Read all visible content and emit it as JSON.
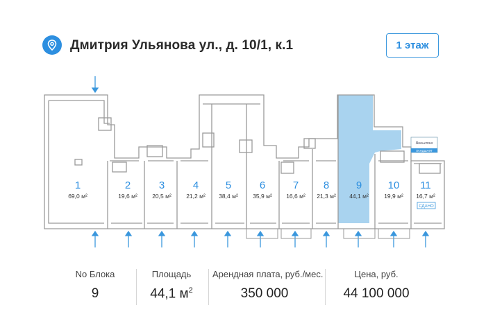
{
  "header": {
    "address": "Дмитрия Ульянова ул., д. 10/1, к.1",
    "floor_button": "1 этаж",
    "pin_icon": "map-pin-icon",
    "accent_color": "#2d8fe0"
  },
  "plan": {
    "selected_unit": "9",
    "highlight_color": "#a9d3ef",
    "units": [
      {
        "num": "1",
        "area": "69,0 м²"
      },
      {
        "num": "2",
        "area": "19,6 м²"
      },
      {
        "num": "3",
        "area": "20,5 м²"
      },
      {
        "num": "4",
        "area": "21,2 м²"
      },
      {
        "num": "5",
        "area": "38,4 м²"
      },
      {
        "num": "6",
        "area": "35,9 м²"
      },
      {
        "num": "7",
        "area": "16,6 м²"
      },
      {
        "num": "8",
        "area": "21,3 м²"
      },
      {
        "num": "9",
        "area": "44,1 м²"
      },
      {
        "num": "10",
        "area": "19,9 м²"
      },
      {
        "num": "11",
        "area": "16,7 м²"
      }
    ],
    "badge_rented": "СДАНО",
    "badge_pharmacy": "ЛАНДШАФТ"
  },
  "info": {
    "block_label": "No Блока",
    "block_value": "9",
    "area_label": "Площадь",
    "area_value": "44,1 м",
    "area_sup": "2",
    "rent_label": "Арендная плата, руб./мес.",
    "rent_value": "350 000",
    "price_label": "Цена, руб.",
    "price_value": "44 100 000"
  }
}
